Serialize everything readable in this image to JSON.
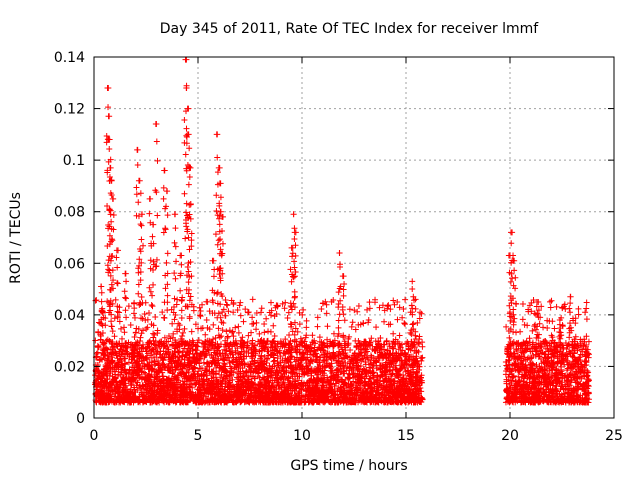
{
  "chart_data": {
    "type": "scatter",
    "title": "Day 345 of 2011, Rate Of TEC Index for receiver lmmf",
    "xlabel": "GPS time / hours",
    "ylabel": "ROTI / TECUs",
    "xlim": [
      0,
      25
    ],
    "ylim": [
      0,
      0.14
    ],
    "x_ticks": [
      0,
      5,
      10,
      15,
      20,
      25
    ],
    "x_tick_labels": [
      "0",
      "5",
      "10",
      "15",
      "20",
      "25"
    ],
    "y_ticks": [
      0,
      0.02,
      0.04,
      0.06,
      0.08,
      0.1,
      0.12,
      0.14
    ],
    "y_tick_labels": [
      "0",
      "0.02",
      "0.04",
      "0.06",
      "0.08",
      "0.1",
      "0.12",
      "0.14"
    ],
    "grid": true,
    "marker": "plus",
    "marker_color": "#ff0000",
    "series": [
      {
        "name": "ROTI",
        "segments": [
          {
            "x_range": [
              0.05,
              15.8
            ],
            "baseline": [
              0.006,
              0.03
            ]
          },
          {
            "x_range": [
              19.8,
              23.8
            ],
            "baseline": [
              0.006,
              0.03
            ]
          }
        ],
        "peaks": [
          {
            "x": 0.35,
            "y": 0.051
          },
          {
            "x": 0.65,
            "y": 0.128
          },
          {
            "x": 0.7,
            "y": 0.117
          },
          {
            "x": 0.75,
            "y": 0.108
          },
          {
            "x": 0.8,
            "y": 0.097
          },
          {
            "x": 0.85,
            "y": 0.092
          },
          {
            "x": 0.9,
            "y": 0.085
          },
          {
            "x": 1.1,
            "y": 0.065
          },
          {
            "x": 1.5,
            "y": 0.056
          },
          {
            "x": 2.1,
            "y": 0.104
          },
          {
            "x": 2.2,
            "y": 0.092
          },
          {
            "x": 2.3,
            "y": 0.079
          },
          {
            "x": 2.7,
            "y": 0.085
          },
          {
            "x": 2.85,
            "y": 0.075
          },
          {
            "x": 3.0,
            "y": 0.114
          },
          {
            "x": 3.4,
            "y": 0.096
          },
          {
            "x": 3.5,
            "y": 0.088
          },
          {
            "x": 3.9,
            "y": 0.079
          },
          {
            "x": 4.2,
            "y": 0.063
          },
          {
            "x": 4.4,
            "y": 0.139
          },
          {
            "x": 4.45,
            "y": 0.128
          },
          {
            "x": 4.5,
            "y": 0.12
          },
          {
            "x": 4.55,
            "y": 0.11
          },
          {
            "x": 4.6,
            "y": 0.097
          },
          {
            "x": 4.65,
            "y": 0.083
          },
          {
            "x": 5.9,
            "y": 0.11
          },
          {
            "x": 6.0,
            "y": 0.097
          },
          {
            "x": 6.05,
            "y": 0.091
          },
          {
            "x": 6.1,
            "y": 0.08
          },
          {
            "x": 5.75,
            "y": 0.061
          },
          {
            "x": 6.2,
            "y": 0.078
          },
          {
            "x": 9.5,
            "y": 0.066
          },
          {
            "x": 9.6,
            "y": 0.079
          },
          {
            "x": 9.65,
            "y": 0.072
          },
          {
            "x": 11.8,
            "y": 0.064
          },
          {
            "x": 12.0,
            "y": 0.055
          },
          {
            "x": 15.3,
            "y": 0.053
          },
          {
            "x": 20.0,
            "y": 0.063
          },
          {
            "x": 20.1,
            "y": 0.072
          },
          {
            "x": 20.2,
            "y": 0.061
          },
          {
            "x": 21.3,
            "y": 0.045
          },
          {
            "x": 22.4,
            "y": 0.038
          },
          {
            "x": 22.9,
            "y": 0.047
          }
        ]
      }
    ]
  }
}
